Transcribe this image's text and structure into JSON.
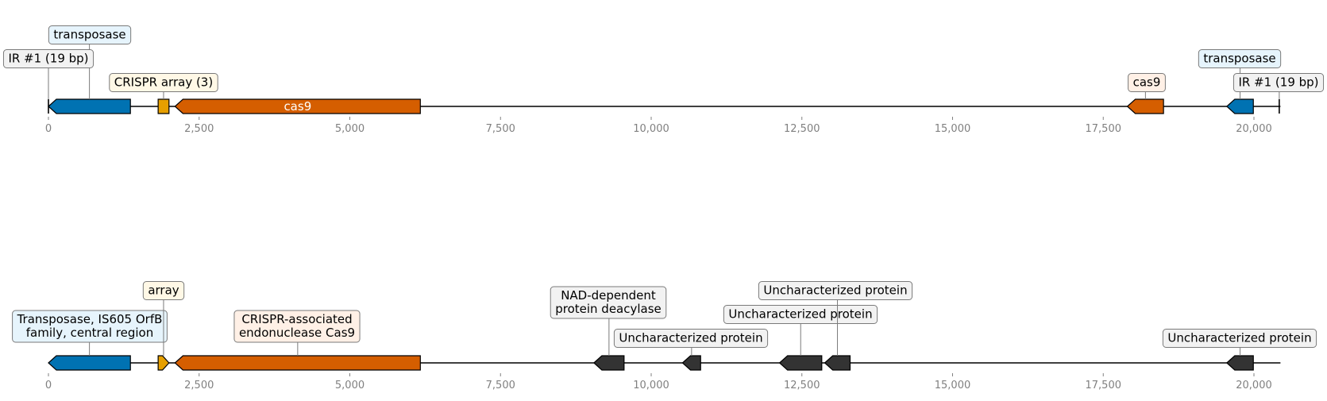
{
  "colors": {
    "transposase": "#0072b2",
    "crispr_array": "#e69f00",
    "cas9": "#d55e00",
    "other": "#333333",
    "axis_text": "#808080",
    "box_transposase": "#e6f4fc",
    "box_crispr": "#fff8e6",
    "box_cas9": "#fff0e6",
    "box_other": "#f2f2f2",
    "box_border": "#7a7a7a"
  },
  "tracks": [
    {
      "name": "track-top",
      "ticks": [
        0,
        2500,
        5000,
        7500,
        10000,
        12500,
        15000,
        17500,
        20000
      ],
      "tick_labels": [
        "0",
        "2,500",
        "5,000",
        "7,500",
        "10,000",
        "12,500",
        "15,000",
        "17,500",
        "20,000"
      ],
      "features": [
        {
          "name": "transposase-left",
          "type": "transposase",
          "start": 0,
          "end": 1360,
          "strand": -1,
          "label": "transposase"
        },
        {
          "name": "crispr-array-top",
          "type": "crispr_array",
          "start": 1820,
          "end": 2000,
          "strand": 0,
          "label": "CRISPR array (3)"
        },
        {
          "name": "cas9-main-top",
          "type": "cas9",
          "start": 2100,
          "end": 6170,
          "strand": -1,
          "label": "cas9",
          "label_inside": true
        },
        {
          "name": "cas9-right",
          "type": "cas9",
          "start": 17900,
          "end": 18500,
          "strand": -1,
          "label": "cas9"
        },
        {
          "name": "transposase-right",
          "type": "transposase",
          "start": 19550,
          "end": 19990,
          "strand": -1,
          "label": "transposase"
        },
        {
          "name": "ir-left",
          "type": "ir",
          "start": 0,
          "end": 5,
          "strand": 0,
          "label": "IR #1 (19 bp)"
        },
        {
          "name": "ir-right",
          "type": "ir",
          "start": 20420,
          "end": 20440,
          "strand": 0,
          "label": "IR #1 (19 bp)"
        }
      ]
    },
    {
      "name": "track-bottom",
      "ticks": [
        0,
        2500,
        5000,
        7500,
        10000,
        12500,
        15000,
        17500,
        20000
      ],
      "tick_labels": [
        "0",
        "2,500",
        "5,000",
        "7,500",
        "10,000",
        "12,500",
        "15,000",
        "17,500",
        "20,000"
      ],
      "features": [
        {
          "name": "transposase-is605",
          "type": "transposase",
          "start": 0,
          "end": 1360,
          "strand": -1,
          "label": "Transposase, IS605 OrfB\nfamily, central region"
        },
        {
          "name": "array-bottom",
          "type": "crispr_array",
          "start": 1820,
          "end": 2000,
          "strand": 1,
          "label": "array"
        },
        {
          "name": "cas9-endonuclease",
          "type": "cas9",
          "start": 2100,
          "end": 6170,
          "strand": -1,
          "label": "CRISPR-associated\nendonuclease Cas9"
        },
        {
          "name": "nad-deacylase",
          "type": "other",
          "start": 9050,
          "end": 9550,
          "strand": -1,
          "label": "NAD-dependent\nprotein deacylase"
        },
        {
          "name": "uncharacterized-1",
          "type": "other",
          "start": 10520,
          "end": 10820,
          "strand": -1,
          "label": "Uncharacterized protein"
        },
        {
          "name": "uncharacterized-2",
          "type": "other",
          "start": 12130,
          "end": 12830,
          "strand": -1,
          "label": "Uncharacterized protein"
        },
        {
          "name": "uncharacterized-3",
          "type": "other",
          "start": 12880,
          "end": 13300,
          "strand": -1,
          "label": "Uncharacterized protein"
        },
        {
          "name": "uncharacterized-4",
          "type": "other",
          "start": 19550,
          "end": 19990,
          "strand": -1,
          "label": "Uncharacterized protein"
        }
      ]
    }
  ]
}
